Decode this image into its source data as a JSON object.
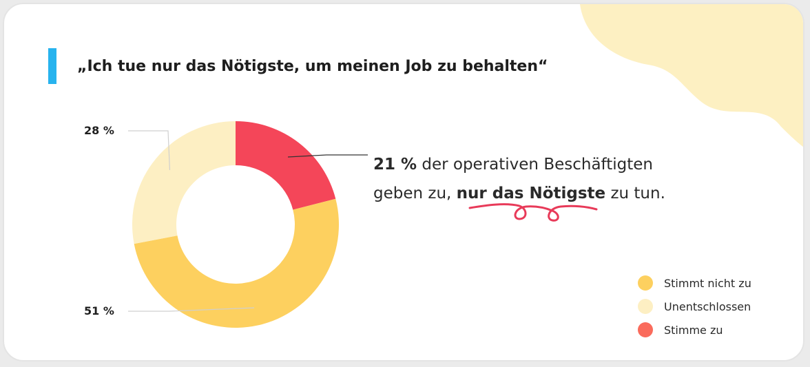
{
  "title": "„Ich tue nur das Nötigste, um meinen Job zu behalten“",
  "callout": {
    "value": "21 %",
    "line1_rest": " der operativen Beschäftigten",
    "line2_pre": "geben zu, ",
    "line2_bold": "nur das Nötigste",
    "line2_post": " zu tun."
  },
  "colors": {
    "accent": "#27b3ee",
    "blob": "#fdf0c2",
    "squiggle": "#e83a59"
  },
  "chart_data": {
    "type": "pie",
    "donut": true,
    "title": "„Ich tue nur das Nötigste, um meinen Job zu behalten“",
    "categories": [
      "Stimmt nicht zu",
      "Unentschlossen",
      "Stimme zu"
    ],
    "values": [
      51,
      28,
      21
    ],
    "labels": [
      "51 %",
      "28 %",
      "21 %"
    ],
    "colors": [
      "#fdd05f",
      "#fdefc3",
      "#f44659"
    ],
    "legend_colors": [
      "#fdd05f",
      "#fdefc3",
      "#fa6b5c"
    ],
    "legend_placement": "bottom-right"
  }
}
